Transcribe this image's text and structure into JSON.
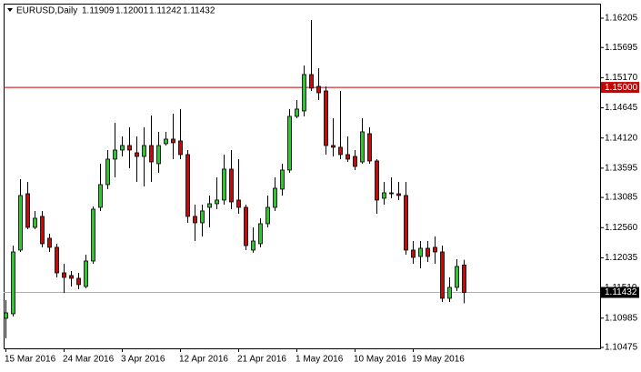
{
  "chart_data": {
    "type": "candlestick",
    "title": "EURUSD,Daily",
    "categories": [
      "15 Mar 2016",
      null,
      null,
      null,
      null,
      null,
      null,
      null,
      "24 Mar 2016",
      null,
      null,
      null,
      null,
      null,
      null,
      null,
      "3 Apr 2016",
      null,
      null,
      null,
      null,
      null,
      null,
      null,
      "12 Apr 2016",
      null,
      null,
      null,
      null,
      null,
      null,
      null,
      "21 Apr 2016",
      null,
      null,
      null,
      null,
      null,
      null,
      null,
      "1 May 2016",
      null,
      null,
      null,
      null,
      null,
      null,
      null,
      "10 May 2016",
      null,
      null,
      null,
      null,
      null,
      null,
      null,
      "19 May 2016",
      null,
      null,
      null,
      null,
      null,
      null,
      null
    ],
    "open": [
      1.10982,
      1.11061,
      1.12169,
      1.1315,
      1.12565,
      1.12755,
      1.12375,
      1.12217,
      1.11773,
      1.11726,
      1.11678,
      1.11536,
      1.11979,
      1.12913,
      1.13309,
      1.13752,
      1.1391,
      1.13989,
      1.13863,
      1.13799,
      1.13989,
      1.13673,
      1.14021,
      1.141,
      1.14069,
      1.13831,
      1.12755,
      1.12644,
      1.12913,
      1.12976,
      1.1304,
      1.13578,
      1.1304,
      1.12913,
      1.12169,
      1.1228,
      1.12628,
      1.12913,
      1.1323,
      1.13562,
      1.14496,
      1.14591,
      1.15224,
      1.15018,
      1.14939,
      1.13989,
      1.13958,
      1.13831,
      1.13799,
      1.13704,
      1.14195,
      1.1372,
      1.13071,
      1.13166,
      1.1315,
      1.13119,
      1.12169,
      1.12058,
      1.12201,
      1.12217,
      1.12137,
      1.1133,
      1.1152,
      1.11909
    ],
    "high": [
      1.11298,
      1.12248,
      1.13404,
      1.13356,
      1.1285,
      1.1285,
      1.12454,
      1.1228,
      1.11932,
      1.11805,
      1.11773,
      1.1209,
      1.12929,
      1.13673,
      1.1391,
      1.14385,
      1.14148,
      1.14306,
      1.14148,
      1.14306,
      1.14512,
      1.14227,
      1.14227,
      1.14543,
      1.14623,
      1.1391,
      1.1296,
      1.1296,
      1.13119,
      1.13435,
      1.13831,
      1.1391,
      1.13752,
      1.1296,
      1.12565,
      1.12723,
      1.13119,
      1.13435,
      1.13673,
      1.14623,
      1.14781,
      1.15382,
      1.16174,
      1.15335,
      1.15018,
      1.14464,
      1.14939,
      1.14148,
      1.1391,
      1.14464,
      1.14306,
      1.13752,
      1.13356,
      1.13435,
      1.13356,
      1.13356,
      1.12327,
      1.12327,
      1.12327,
      1.12406,
      1.12248,
      1.11694,
      1.12011,
      1.12001
    ],
    "low": [
      1.10634,
      1.11014,
      1.12137,
      1.12533,
      1.12533,
      1.12217,
      1.12137,
      1.11694,
      1.11425,
      1.11536,
      1.11488,
      1.11504,
      1.11932,
      1.1285,
      1.1323,
      1.13435,
      1.13799,
      1.13594,
      1.13356,
      1.13277,
      1.13356,
      1.13514,
      1.13989,
      1.13752,
      1.13752,
      1.12644,
      1.12327,
      1.12406,
      1.12565,
      1.12881,
      1.1296,
      1.12881,
      1.12802,
      1.12169,
      1.12122,
      1.12217,
      1.12565,
      1.1285,
      1.13119,
      1.13514,
      1.14464,
      1.14496,
      1.14939,
      1.14781,
      1.13831,
      1.13799,
      1.13752,
      1.13704,
      1.13562,
      1.13673,
      1.13673,
      1.12802,
      1.1296,
      1.13071,
      1.1304,
      1.1209,
      1.11932,
      1.11852,
      1.11963,
      1.11932,
      1.11267,
      1.11267,
      1.11457,
      1.11242
    ],
    "close": [
      1.11077,
      1.12137,
      1.13119,
      1.12565,
      1.12723,
      1.1228,
      1.12217,
      1.11773,
      1.11694,
      1.11678,
      1.11568,
      1.11979,
      1.12881,
      1.13309,
      1.13752,
      1.1391,
      1.13989,
      1.1391,
      1.13799,
      1.13989,
      1.13704,
      1.13989,
      1.141,
      1.14037,
      1.13831,
      1.12755,
      1.12644,
      1.1285,
      1.12976,
      1.1304,
      1.13578,
      1.13008,
      1.12913,
      1.12248,
      1.12327,
      1.12628,
      1.12913,
      1.13245,
      1.13562,
      1.14496,
      1.14623,
      1.15224,
      1.14987,
      1.14907,
      1.13989,
      1.13958,
      1.13831,
      1.13752,
      1.13625,
      1.14227,
      1.1372,
      1.1304,
      1.13166,
      1.1315,
      1.13119,
      1.12169,
      1.12042,
      1.12201,
      1.12058,
      1.12137,
      1.1133,
      1.1152,
      1.11884,
      1.11432
    ],
    "up_color": "#22d022",
    "down_color": "#dd0000",
    "ylim": [
      1.10459,
      1.16458
    ],
    "yticks": [
      1.16205,
      1.15695,
      {
        "value": 1.1517,
        "label": "1.15170"
      },
      1.14645,
      {
        "value": 1.1412,
        "label": "1.14120"
      },
      1.13595,
      1.13085,
      {
        "value": 1.1256,
        "label": "1.12560"
      },
      1.12035,
      {
        "value": 1.1151,
        "label": "1.11510"
      },
      1.10985,
      1.10475
    ],
    "hline": {
      "value": 1.15,
      "label": "1.15000",
      "color": "#cc0000"
    }
  }
}
